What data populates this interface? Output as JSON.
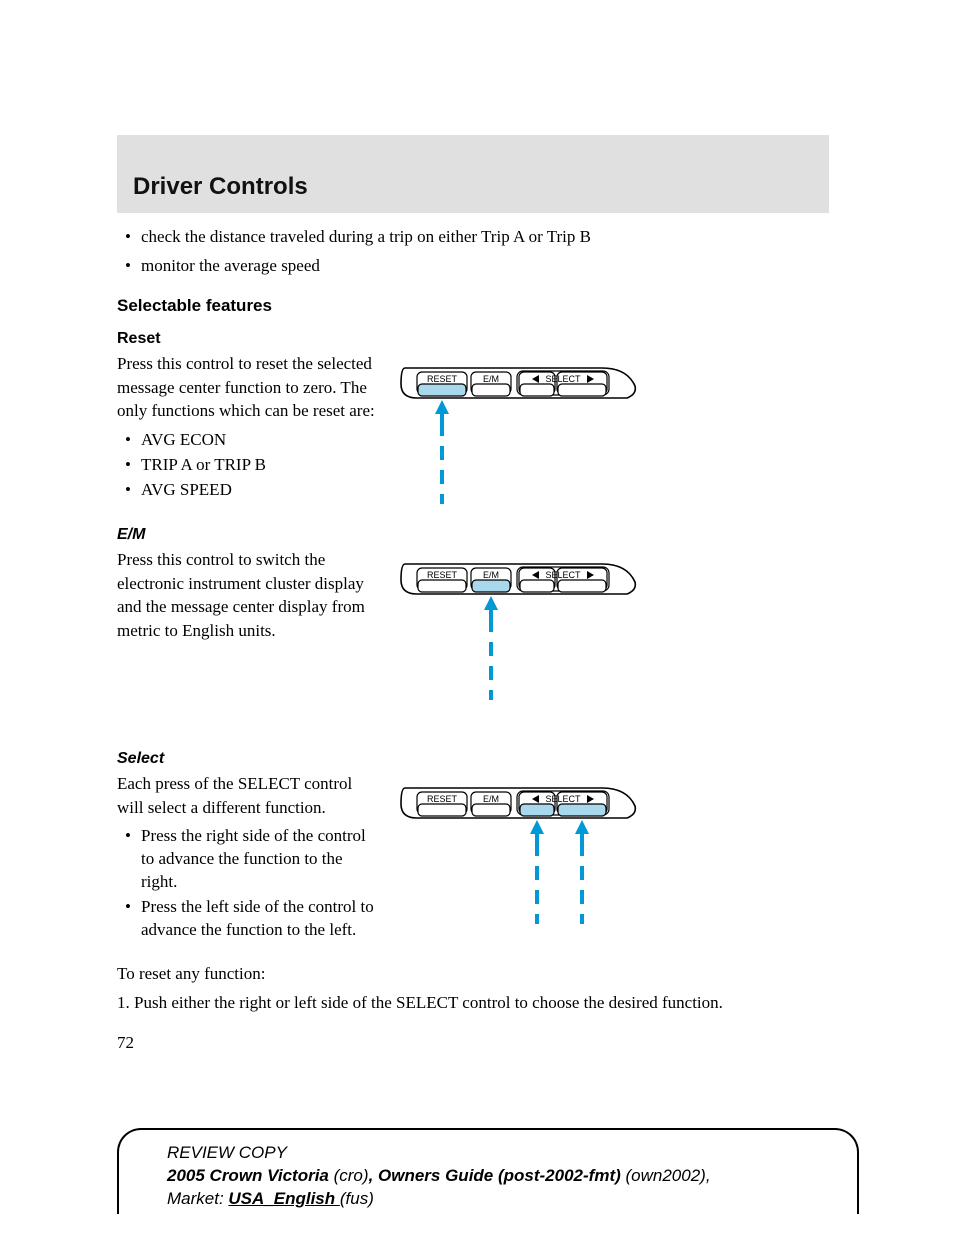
{
  "header": {
    "title": "Driver Controls"
  },
  "intro_bullets": [
    "check the distance traveled during a trip on either Trip A or Trip B",
    "monitor the average speed"
  ],
  "selectable_heading": "Selectable features",
  "reset": {
    "heading": "Reset",
    "text": "Press this control to reset the selected message center function to zero. The only functions which can be reset are:",
    "bullets": [
      "AVG ECON",
      "TRIP A or TRIP B",
      "AVG SPEED"
    ]
  },
  "em": {
    "heading": "E/M",
    "text": "Press this control to switch the electronic instrument cluster display and the message center display from metric to English units."
  },
  "select": {
    "heading": "Select",
    "text": "Each press of the SELECT control will select a different function.",
    "bullets": [
      "Press the right side of the control to advance the function to the right.",
      "Press the left side of the control to advance the function to the left."
    ],
    "after1": "To reset any function:",
    "after2": "1. Push either the right or left side of the SELECT control to choose the desired function."
  },
  "panel": {
    "labels": {
      "reset": "RESET",
      "em": "E/M",
      "select": "SELECT"
    },
    "colors": {
      "outline": "#000000",
      "fill": "#ffffff",
      "highlight": "#a9d7ec",
      "arrow": "#0099d6",
      "text": "#000000"
    }
  },
  "page_number": "72",
  "footer": {
    "review": "REVIEW COPY",
    "l2a": "2005 Crown Victoria ",
    "l2b": "(cro)",
    "l2c": ", Owners Guide (post-2002-fmt) ",
    "l2d": "(own2002)",
    "l2e": ",",
    "l3a": "Market: ",
    "l3b": " USA_English ",
    "l3c": "(fus)"
  }
}
